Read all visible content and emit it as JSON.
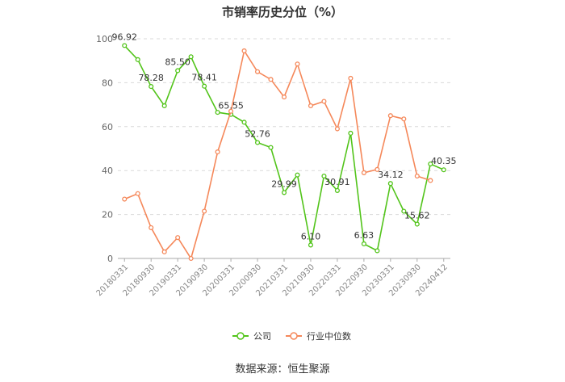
{
  "chart_data": {
    "type": "line",
    "title": "市销率历史分位（%）",
    "source": "数据来源：恒生聚源",
    "ylim": [
      0,
      100
    ],
    "yticks": [
      0,
      20,
      40,
      60,
      80,
      100
    ],
    "xtick_labels": [
      "20180331",
      "20180930",
      "20190331",
      "20190930",
      "20200331",
      "20200930",
      "20210331",
      "20210930",
      "20220331",
      "20220930",
      "20230331",
      "20230930",
      "20240412"
    ],
    "grid": "horizontal dashed",
    "legend_position": "bottom-center",
    "series": [
      {
        "name": "公司",
        "color": "#52c41a",
        "values": [
          96.92,
          90.5,
          78.28,
          69.5,
          85.5,
          91.8,
          78.41,
          66.5,
          65.55,
          62.0,
          52.76,
          50.5,
          29.99,
          38.0,
          6.1,
          37.5,
          30.91,
          57.0,
          6.63,
          3.5,
          34.12,
          21.5,
          15.62,
          43.0,
          40.35
        ],
        "labels": [
          "96.92",
          "",
          "78.28",
          "",
          "85.50",
          "",
          "78.41",
          "",
          "65.55",
          "",
          "52.76",
          "",
          "29.99",
          "",
          "6.10",
          "",
          "30.91",
          "",
          "6.63",
          "",
          "34.12",
          "",
          "15.62",
          "",
          "40.35"
        ]
      },
      {
        "name": "行业中位数",
        "color": "#f5885a",
        "values": [
          27.0,
          29.5,
          14.0,
          3.0,
          9.5,
          0.0,
          21.5,
          48.5,
          67.0,
          94.5,
          85.0,
          81.5,
          73.5,
          88.5,
          69.5,
          71.5,
          59.0,
          82.0,
          39.0,
          40.5,
          65.0,
          63.5,
          37.5,
          35.5,
          null
        ]
      }
    ]
  }
}
